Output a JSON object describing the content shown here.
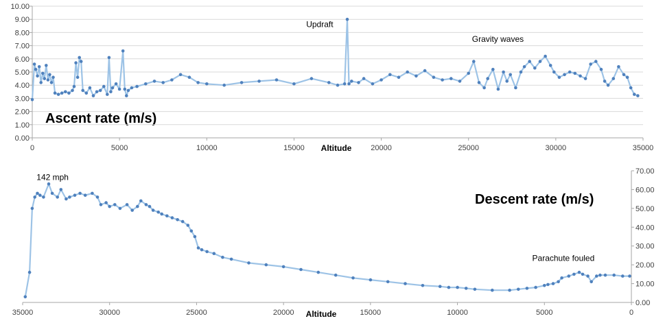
{
  "colors": {
    "series": "#4f81bd",
    "series_light": "#9dc3e6",
    "grid": "#d9d9d9"
  },
  "chart_data": [
    {
      "type": "line",
      "title": "Ascent rate (m/s)",
      "xlabel": "Altitude",
      "xlim": [
        0,
        35000
      ],
      "ylim": [
        0,
        10
      ],
      "x_ticks": [
        "0",
        "5000",
        "10000",
        "15000",
        "20000",
        "25000",
        "30000",
        "35000"
      ],
      "y_ticks": [
        "0.00",
        "1.00",
        "2.00",
        "3.00",
        "4.00",
        "5.00",
        "6.00",
        "7.00",
        "8.00",
        "9.00",
        "10.00"
      ],
      "grid": true,
      "annotations": [
        {
          "text": "Updraft",
          "x": 15700,
          "y": 8.4
        },
        {
          "text": "Gravity waves",
          "x": 25200,
          "y": 7.3
        }
      ],
      "series": [
        {
          "x": [
            0,
            120,
            200,
            300,
            400,
            500,
            600,
            700,
            800,
            900,
            1000,
            1100,
            1200,
            1300,
            1500,
            1700,
            1900,
            2100,
            2300,
            2400,
            2500,
            2600,
            2700,
            2800,
            2900,
            3100,
            3300,
            3500,
            3700,
            3900,
            4100,
            4300,
            4400,
            4500,
            4600,
            4800,
            5000,
            5200,
            5300,
            5400,
            5500,
            5700,
            6000,
            6500,
            7000,
            7500,
            8000,
            8500,
            9000,
            9500,
            10000,
            11000,
            12000,
            13000,
            14000,
            15000,
            16000,
            17000,
            17500,
            17900,
            18050,
            18150,
            18300,
            18700,
            19000,
            19500,
            20000,
            20500,
            21000,
            21500,
            22000,
            22500,
            23000,
            23500,
            24000,
            24500,
            25000,
            25300,
            25600,
            25900,
            26100,
            26400,
            26700,
            27000,
            27200,
            27400,
            27700,
            28000,
            28200,
            28500,
            28800,
            29100,
            29400,
            29700,
            29900,
            30200,
            30500,
            30800,
            31100,
            31400,
            31700,
            32000,
            32300,
            32600,
            32800,
            33000,
            33300,
            33600,
            33900,
            34100,
            34300,
            34500,
            34700
          ],
          "y": [
            2.9,
            5.6,
            5.2,
            4.7,
            5.4,
            4.2,
            4.9,
            4.5,
            5.5,
            4.4,
            4.8,
            4.2,
            4.6,
            3.4,
            3.3,
            3.4,
            3.5,
            3.4,
            3.6,
            3.9,
            5.7,
            4.6,
            6.1,
            5.8,
            3.6,
            3.4,
            3.8,
            3.2,
            3.5,
            3.6,
            3.9,
            3.3,
            6.1,
            3.5,
            3.8,
            4.1,
            3.7,
            6.6,
            3.7,
            3.2,
            3.6,
            3.8,
            3.9,
            4.1,
            4.3,
            4.2,
            4.4,
            4.8,
            4.6,
            4.2,
            4.1,
            4.0,
            4.2,
            4.3,
            4.4,
            4.1,
            4.5,
            4.2,
            4.0,
            4.1,
            9.0,
            4.1,
            4.3,
            4.2,
            4.5,
            4.1,
            4.4,
            4.8,
            4.6,
            5.0,
            4.7,
            5.1,
            4.6,
            4.4,
            4.5,
            4.3,
            4.9,
            5.8,
            4.2,
            3.8,
            4.5,
            5.2,
            3.7,
            5.0,
            4.3,
            4.8,
            3.8,
            5.0,
            5.4,
            5.8,
            5.3,
            5.8,
            6.2,
            5.5,
            5.0,
            4.6,
            4.8,
            5.0,
            4.9,
            4.7,
            4.5,
            5.6,
            5.8,
            5.2,
            4.3,
            4.0,
            4.5,
            5.4,
            4.8,
            4.6,
            3.8,
            3.3,
            3.2
          ]
        }
      ]
    },
    {
      "type": "line",
      "title": "Descent rate (m/s)",
      "xlabel": "Altitude",
      "xlim": [
        35000,
        0
      ],
      "ylim": [
        0,
        70
      ],
      "x_ticks": [
        "35000",
        "30000",
        "25000",
        "20000",
        "15000",
        "10000",
        "5000",
        "0"
      ],
      "y_ticks": [
        "0.00",
        "10.00",
        "20.00",
        "30.00",
        "40.00",
        "50.00",
        "60.00",
        "70.00"
      ],
      "y_axis_side": "right",
      "grid": false,
      "annotations": [
        {
          "text": "142 mph",
          "x": 34200,
          "y": 65
        },
        {
          "text": "Parachute fouled",
          "x": 5700,
          "y": 22
        }
      ],
      "series": [
        {
          "x": [
            34850,
            34600,
            34450,
            34300,
            34150,
            34000,
            33800,
            33500,
            33300,
            33000,
            32800,
            32500,
            32300,
            32000,
            31700,
            31400,
            31000,
            30700,
            30500,
            30200,
            30000,
            29700,
            29400,
            29000,
            28700,
            28400,
            28200,
            27900,
            27700,
            27500,
            27200,
            27000,
            26700,
            26400,
            26100,
            25800,
            25500,
            25300,
            25100,
            24900,
            24700,
            24400,
            24000,
            23500,
            23000,
            22000,
            21000,
            20000,
            19000,
            18000,
            17000,
            16000,
            15000,
            14000,
            13000,
            12000,
            11000,
            10500,
            10000,
            9500,
            9000,
            8000,
            7000,
            6500,
            6000,
            5500,
            5000,
            4800,
            4500,
            4200,
            4000,
            3600,
            3300,
            3000,
            2800,
            2500,
            2300,
            2000,
            1800,
            1500,
            1000,
            500,
            100
          ],
          "y": [
            3,
            16,
            50,
            56,
            58,
            57,
            56,
            63,
            58,
            56,
            60,
            55,
            56,
            57,
            58,
            57,
            58,
            56,
            52,
            53,
            51,
            52,
            50,
            52,
            49,
            51,
            54,
            52,
            51,
            49,
            48,
            47,
            46,
            45,
            44,
            43,
            41,
            38,
            35,
            29,
            28,
            27,
            26,
            24,
            23,
            21,
            20,
            19,
            17.5,
            16,
            14.5,
            13,
            12,
            11,
            10,
            9,
            8.5,
            8,
            8,
            7.5,
            7,
            6.5,
            6.5,
            7,
            7.5,
            8,
            9,
            9.5,
            10,
            11,
            13,
            14,
            15,
            16,
            15,
            14,
            11,
            14,
            14.5,
            14.5,
            14.5,
            14,
            14
          ]
        }
      ]
    }
  ]
}
